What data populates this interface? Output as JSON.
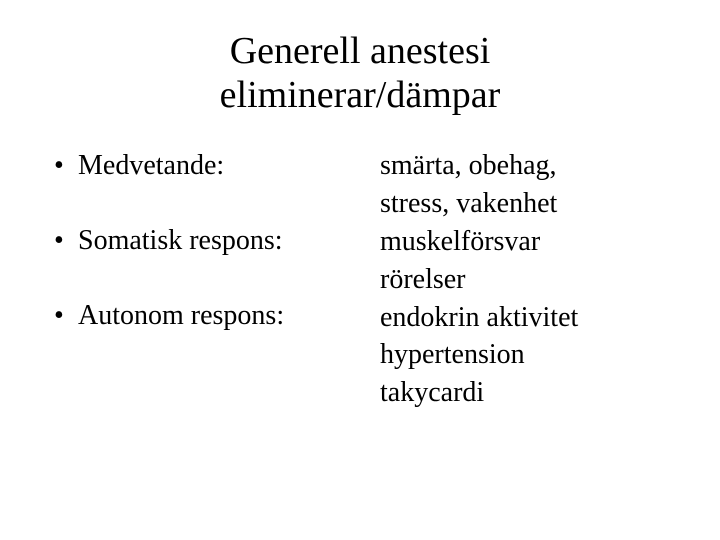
{
  "background_color": "#ffffff",
  "text_color": "#000000",
  "font_family": "Times New Roman",
  "title": {
    "line1": "Generell anestesi",
    "line2": "eliminerar/dämpar",
    "fontsize": 38
  },
  "body_fontsize": 28,
  "left": {
    "items": [
      {
        "label": "Medvetande:"
      },
      {
        "label": "Somatisk respons:"
      },
      {
        "label": "Autonom respons:"
      }
    ]
  },
  "right": {
    "lines": [
      "smärta, obehag,",
      "stress, vakenhet",
      "muskelförsvar",
      "rörelser",
      "endokrin aktivitet",
      "hypertension",
      "takycardi"
    ]
  }
}
